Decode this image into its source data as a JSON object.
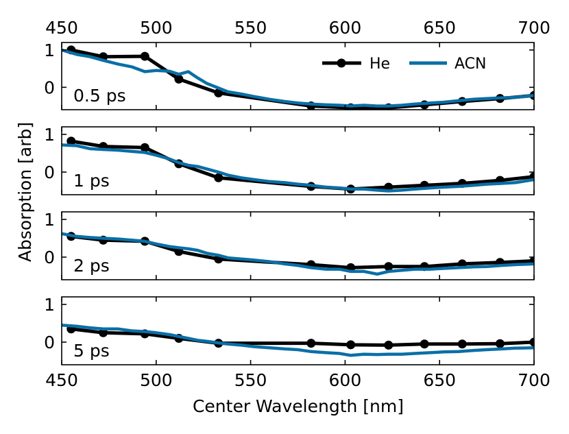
{
  "chart_data": {
    "type": "line",
    "xlabel": "Center Wavelength [nm]",
    "ylabel": "Absorption [arb]",
    "xlim": [
      450,
      700
    ],
    "ylim": [
      -0.6,
      1.2
    ],
    "xticks": [
      450,
      500,
      550,
      600,
      650,
      700
    ],
    "xtick_labels": [
      "450",
      "500",
      "550",
      "600",
      "650",
      "700"
    ],
    "yticks": [
      1,
      0
    ],
    "ytick_labels": [
      "1",
      "0"
    ],
    "legend": {
      "position": "top-right",
      "entries": [
        "He",
        "ACN"
      ]
    },
    "colors": {
      "He": "#000000",
      "ACN": "#0a6fa6"
    },
    "panels": [
      {
        "label": "0.5 ps",
        "series": [
          {
            "name": "He",
            "marker": "circle",
            "x": [
              455,
              472,
              494,
              512,
              533,
              582,
              603,
              623,
              642,
              662,
              682,
              700
            ],
            "y": [
              1.0,
              0.82,
              0.83,
              0.22,
              -0.15,
              -0.5,
              -0.55,
              -0.55,
              -0.47,
              -0.38,
              -0.3,
              -0.22
            ]
          },
          {
            "name": "ACN",
            "marker": "none",
            "x": [
              450,
              458,
              465,
              472,
              480,
              487,
              494,
              500,
              507,
              512,
              517,
              522,
              527,
              533,
              538,
              545,
              552,
              560,
              568,
              575,
              582,
              590,
              597,
              603,
              610,
              617,
              623,
              630,
              637,
              645,
              652,
              660,
              668,
              675,
              683,
              690,
              700
            ],
            "y": [
              1.0,
              0.88,
              0.82,
              0.72,
              0.62,
              0.55,
              0.42,
              0.45,
              0.43,
              0.35,
              0.42,
              0.25,
              0.1,
              -0.02,
              -0.12,
              -0.18,
              -0.25,
              -0.32,
              -0.38,
              -0.42,
              -0.45,
              -0.47,
              -0.48,
              -0.5,
              -0.48,
              -0.5,
              -0.5,
              -0.48,
              -0.45,
              -0.42,
              -0.4,
              -0.36,
              -0.32,
              -0.3,
              -0.28,
              -0.27,
              -0.22
            ]
          }
        ]
      },
      {
        "label": "1 ps",
        "series": [
          {
            "name": "He",
            "marker": "circle",
            "x": [
              455,
              472,
              494,
              512,
              533,
              582,
              603,
              623,
              642,
              662,
              682,
              700
            ],
            "y": [
              0.82,
              0.68,
              0.65,
              0.22,
              -0.15,
              -0.38,
              -0.45,
              -0.4,
              -0.35,
              -0.3,
              -0.22,
              -0.12
            ]
          },
          {
            "name": "ACN",
            "marker": "none",
            "x": [
              450,
              458,
              465,
              472,
              480,
              487,
              494,
              500,
              507,
              512,
              517,
              522,
              527,
              533,
              538,
              545,
              552,
              560,
              568,
              575,
              582,
              590,
              597,
              603,
              610,
              617,
              623,
              630,
              637,
              645,
              652,
              660,
              668,
              675,
              683,
              690,
              700
            ],
            "y": [
              0.72,
              0.7,
              0.62,
              0.6,
              0.58,
              0.55,
              0.52,
              0.45,
              0.35,
              0.25,
              0.18,
              0.15,
              0.08,
              0.0,
              -0.08,
              -0.15,
              -0.2,
              -0.25,
              -0.28,
              -0.32,
              -0.35,
              -0.4,
              -0.42,
              -0.45,
              -0.45,
              -0.48,
              -0.5,
              -0.48,
              -0.45,
              -0.42,
              -0.4,
              -0.38,
              -0.35,
              -0.32,
              -0.3,
              -0.28,
              -0.2
            ]
          }
        ]
      },
      {
        "label": "2 ps",
        "series": [
          {
            "name": "He",
            "marker": "circle",
            "x": [
              455,
              472,
              494,
              512,
              533,
              582,
              603,
              623,
              642,
              662,
              682,
              700
            ],
            "y": [
              0.55,
              0.45,
              0.42,
              0.15,
              -0.05,
              -0.2,
              -0.28,
              -0.25,
              -0.25,
              -0.18,
              -0.14,
              -0.1
            ]
          },
          {
            "name": "ACN",
            "marker": "none",
            "x": [
              450,
              458,
              465,
              472,
              480,
              487,
              494,
              500,
              507,
              512,
              517,
              522,
              527,
              533,
              538,
              545,
              552,
              560,
              568,
              575,
              582,
              590,
              597,
              603,
              610,
              617,
              623,
              630,
              637,
              645,
              652,
              660,
              668,
              675,
              683,
              690,
              700
            ],
            "y": [
              0.62,
              0.55,
              0.52,
              0.5,
              0.48,
              0.45,
              0.42,
              0.35,
              0.28,
              0.25,
              0.22,
              0.18,
              0.1,
              0.05,
              -0.02,
              -0.05,
              -0.08,
              -0.12,
              -0.18,
              -0.22,
              -0.28,
              -0.32,
              -0.32,
              -0.38,
              -0.38,
              -0.45,
              -0.38,
              -0.35,
              -0.32,
              -0.32,
              -0.3,
              -0.28,
              -0.26,
              -0.25,
              -0.22,
              -0.2,
              -0.18
            ]
          }
        ]
      },
      {
        "label": "5 ps",
        "series": [
          {
            "name": "He",
            "marker": "circle",
            "x": [
              455,
              472,
              494,
              512,
              533,
              582,
              603,
              623,
              642,
              662,
              682,
              700
            ],
            "y": [
              0.35,
              0.25,
              0.22,
              0.1,
              -0.03,
              -0.03,
              -0.07,
              -0.08,
              -0.05,
              -0.05,
              -0.04,
              0.0
            ]
          },
          {
            "name": "ACN",
            "marker": "none",
            "x": [
              450,
              458,
              465,
              472,
              480,
              487,
              494,
              500,
              507,
              512,
              517,
              522,
              527,
              533,
              538,
              545,
              552,
              560,
              568,
              575,
              582,
              590,
              597,
              603,
              610,
              617,
              623,
              630,
              637,
              645,
              652,
              660,
              668,
              675,
              683,
              690,
              700
            ],
            "y": [
              0.45,
              0.42,
              0.38,
              0.35,
              0.35,
              0.3,
              0.28,
              0.25,
              0.2,
              0.15,
              0.1,
              0.05,
              0.02,
              -0.02,
              -0.05,
              -0.08,
              -0.12,
              -0.15,
              -0.18,
              -0.2,
              -0.25,
              -0.28,
              -0.3,
              -0.35,
              -0.32,
              -0.33,
              -0.32,
              -0.32,
              -0.3,
              -0.28,
              -0.26,
              -0.25,
              -0.22,
              -0.2,
              -0.18,
              -0.16,
              -0.15
            ]
          }
        ]
      }
    ]
  }
}
